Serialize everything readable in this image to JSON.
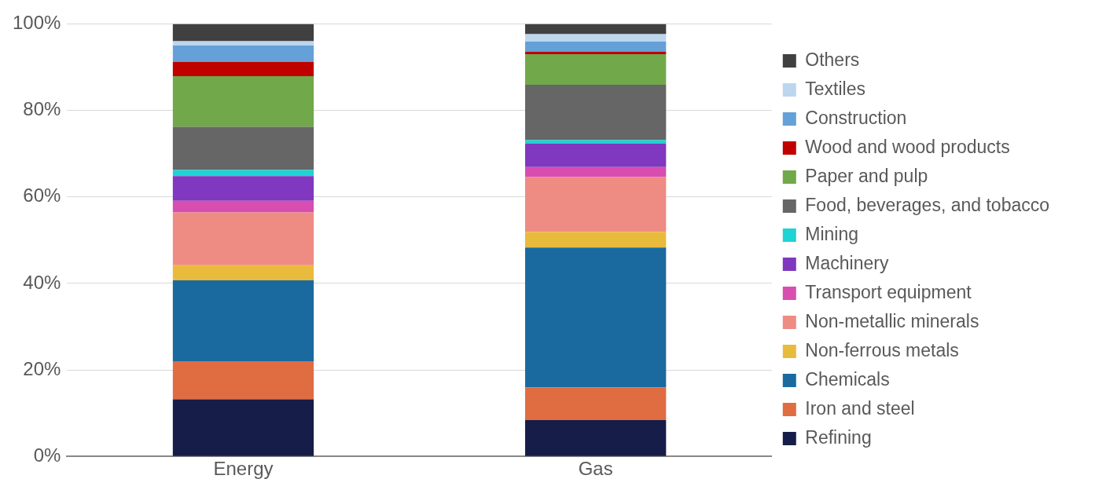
{
  "chart_data": {
    "type": "bar",
    "stacked": true,
    "categories": [
      "Energy",
      "Gas"
    ],
    "series": [
      {
        "name": "Refining",
        "color": "#161d48",
        "values": [
          13.2,
          8.4
        ]
      },
      {
        "name": "Iron and steel",
        "color": "#e06c42",
        "values": [
          8.8,
          7.5
        ]
      },
      {
        "name": "Chemicals",
        "color": "#1a6aa0",
        "values": [
          18.7,
          32.4
        ]
      },
      {
        "name": "Non-ferrous metals",
        "color": "#e9bb3c",
        "values": [
          3.5,
          3.6
        ]
      },
      {
        "name": "Non-metallic minerals",
        "color": "#ee8b83",
        "values": [
          12.2,
          12.7
        ]
      },
      {
        "name": "Transport equipment",
        "color": "#d84db0",
        "values": [
          2.7,
          2.3
        ]
      },
      {
        "name": "Machinery",
        "color": "#7f38bf",
        "values": [
          5.7,
          5.4
        ]
      },
      {
        "name": "Mining",
        "color": "#1dd3d3",
        "values": [
          1.4,
          0.8
        ]
      },
      {
        "name": "Food, beverages, and tobacco",
        "color": "#666666",
        "values": [
          10.0,
          12.8
        ]
      },
      {
        "name": "Paper and pulp",
        "color": "#70a84a",
        "values": [
          11.7,
          7.1
        ]
      },
      {
        "name": "Wood and wood products",
        "color": "#c00000",
        "values": [
          3.3,
          0.6
        ]
      },
      {
        "name": "Construction",
        "color": "#65a0d8",
        "values": [
          3.8,
          2.3
        ]
      },
      {
        "name": "Textiles",
        "color": "#bcd6ee",
        "values": [
          1.0,
          1.7
        ]
      },
      {
        "name": "Others",
        "color": "#404040",
        "values": [
          4.0,
          2.4
        ]
      }
    ],
    "ylim": [
      0,
      100
    ],
    "yticks": [
      {
        "value": 0,
        "label": "0%"
      },
      {
        "value": 20,
        "label": "20%"
      },
      {
        "value": 40,
        "label": "40%"
      },
      {
        "value": 60,
        "label": "60%"
      },
      {
        "value": 80,
        "label": "80%"
      },
      {
        "value": 100,
        "label": "100%"
      }
    ],
    "grid": "y",
    "legend": "right"
  }
}
